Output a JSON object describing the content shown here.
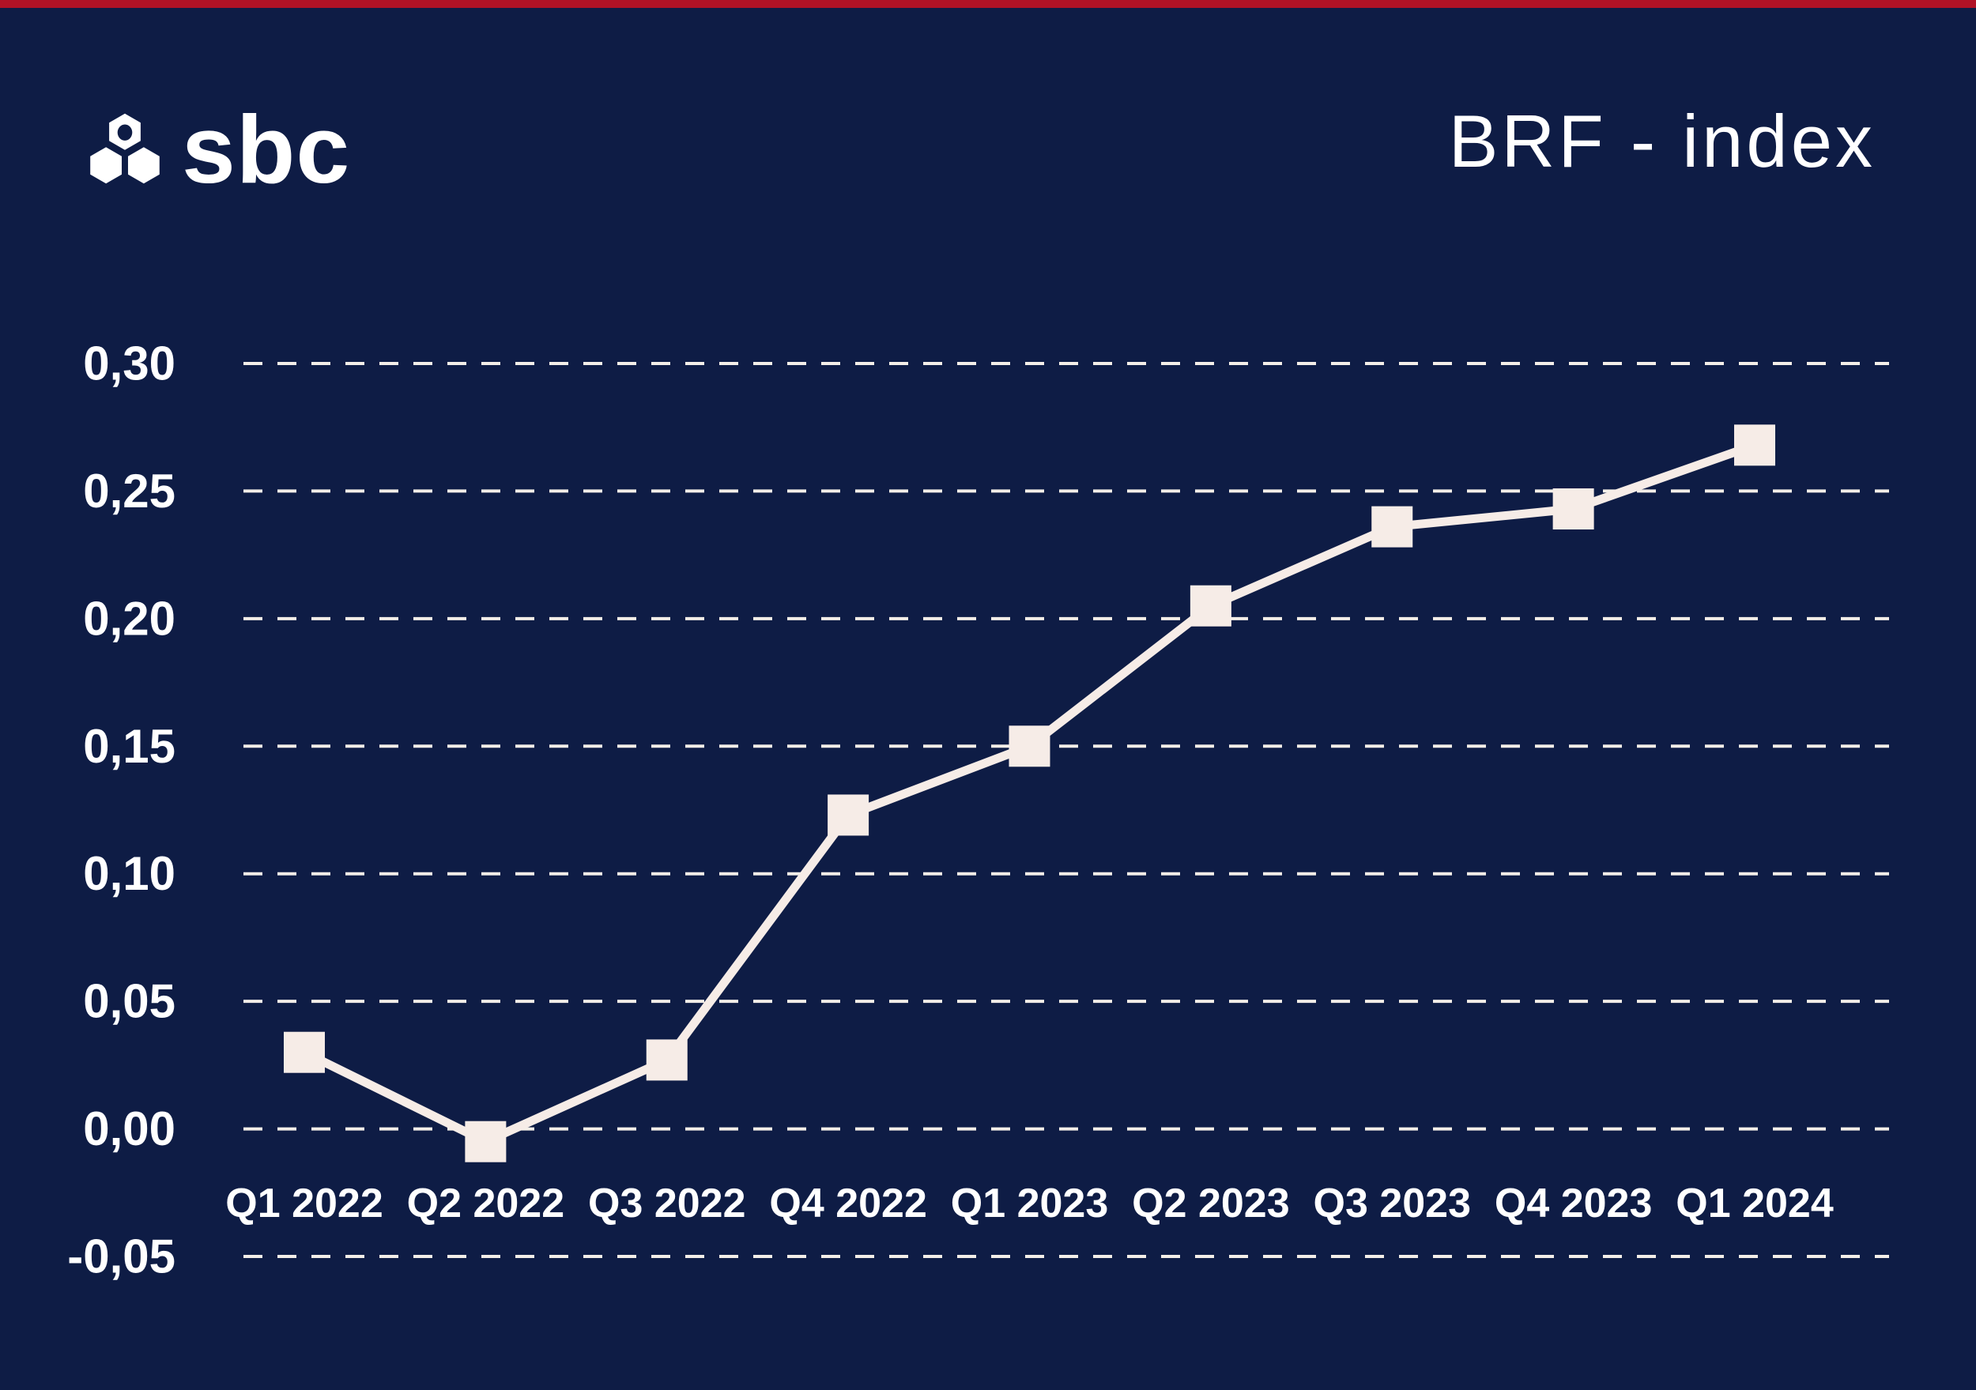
{
  "header": {
    "logo_text": "sbc",
    "title": "BRF - index"
  },
  "colors": {
    "background": "#0e1c45",
    "top_accent_bar": "#b01226",
    "line": "#f6ece7",
    "marker": "#f6ece7",
    "gridline": "#f3eee8",
    "label_text": "#ffffff"
  },
  "chart_data": {
    "type": "line",
    "title": "BRF - index",
    "categories": [
      "Q1 2022",
      "Q2 2022",
      "Q3 2022",
      "Q4 2022",
      "Q1 2023",
      "Q2 2023",
      "Q3 2023",
      "Q4 2023",
      "Q1 2024"
    ],
    "series": [
      {
        "name": "BRF-index",
        "values": [
          0.03,
          -0.005,
          0.027,
          0.123,
          0.15,
          0.205,
          0.236,
          0.243,
          0.268
        ]
      }
    ],
    "ylim": [
      -0.05,
      0.3
    ],
    "ytick_step": 0.05,
    "ytick_labels": [
      "0,30",
      "0,25",
      "0,20",
      "0,15",
      "0,10",
      "0,05",
      "0,00",
      "-0,05"
    ],
    "xlabel": "",
    "ylabel": "",
    "decimal_separator": ",",
    "grid": "horizontal-dashed",
    "legend": "none",
    "marker_shape": "square",
    "line_color": "#f6ece7",
    "marker_color": "#f6ece7"
  }
}
